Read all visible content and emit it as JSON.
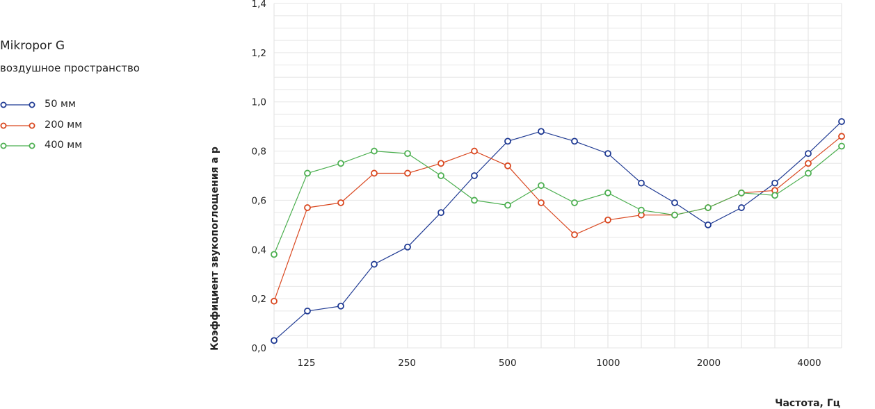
{
  "chart_data": {
    "type": "line",
    "title": "Mikropor G",
    "subtitle": "воздушное пространство",
    "xlabel": "Частота, Гц",
    "ylabel": "Коэффициент звукопоглощения a p",
    "x": [
      100,
      125,
      160,
      200,
      250,
      315,
      400,
      500,
      630,
      800,
      1000,
      1250,
      1600,
      2000,
      2500,
      3150,
      4000,
      5000
    ],
    "x_tick_labels": [
      {
        "value": 125,
        "label": "125"
      },
      {
        "value": 250,
        "label": "250"
      },
      {
        "value": 500,
        "label": "500"
      },
      {
        "value": 1000,
        "label": "1000"
      },
      {
        "value": 2000,
        "label": "2000"
      },
      {
        "value": 4000,
        "label": "4000"
      }
    ],
    "y_tick_labels": [
      {
        "value": 0.0,
        "label": "0,0"
      },
      {
        "value": 0.2,
        "label": "0,2"
      },
      {
        "value": 0.4,
        "label": "0,4"
      },
      {
        "value": 0.6,
        "label": "0,6"
      },
      {
        "value": 0.8,
        "label": "0,8"
      },
      {
        "value": 1.0,
        "label": "1,0"
      },
      {
        "value": 1.2,
        "label": "1,2"
      },
      {
        "value": 1.4,
        "label": "1,4"
      }
    ],
    "ylim": [
      0,
      1.4
    ],
    "xscale": "log",
    "grid": true,
    "legend_position": "left",
    "series": [
      {
        "name": "50 мм",
        "color": "#1f3a93",
        "values": [
          0.03,
          0.15,
          0.17,
          0.34,
          0.41,
          0.55,
          0.7,
          0.84,
          0.88,
          0.84,
          0.79,
          0.67,
          0.59,
          0.5,
          0.57,
          0.67,
          0.79,
          0.92
        ]
      },
      {
        "name": "200 мм",
        "color": "#d9471f",
        "values": [
          0.19,
          0.57,
          0.59,
          0.71,
          0.71,
          0.75,
          0.8,
          0.74,
          0.59,
          0.46,
          0.52,
          0.54,
          0.54,
          0.57,
          0.63,
          0.64,
          0.75,
          0.86
        ]
      },
      {
        "name": "400 мм",
        "color": "#4caf50",
        "values": [
          0.38,
          0.71,
          0.75,
          0.8,
          0.79,
          0.7,
          0.6,
          0.58,
          0.66,
          0.59,
          0.63,
          0.56,
          0.54,
          0.57,
          0.63,
          0.62,
          0.71,
          0.82
        ]
      }
    ]
  }
}
